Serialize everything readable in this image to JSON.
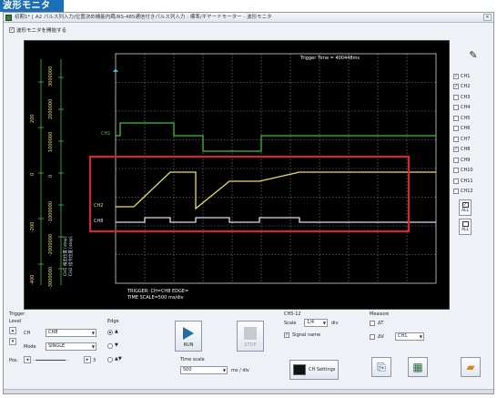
{
  "badge": "波形モニタ",
  "window": {
    "title": "初期1* [ A2 パルス列入力/位置決め機能内蔵/RS-485通信付きパルス列入力 : 標準/ギヤードモーター - 波形モニタ",
    "close_label": "×"
  },
  "monitor_toggle": {
    "label": "波形モニタを開始する",
    "checked": true
  },
  "scope": {
    "trigger_time": "Trigger Time = 400448ms",
    "trigger_info": "TRIGGER: CH=CH8 EDGE=",
    "time_scale_info": "TIME SCALE=500 ms/div",
    "ch_labels": {
      "ch1": "CH1",
      "ch2": "CH2",
      "ch8": "CH8"
    },
    "axis_ticks_a": [
      "-400",
      "-200",
      "0",
      "200"
    ],
    "axis_ticks_b": [
      "-3000000",
      "-2000000",
      "-1000000",
      "0",
      "1000000",
      "2000000",
      "3000000"
    ],
    "axis_title_a": "CH1 検出位置 [step]",
    "axis_title_b": "CH2 指令位置 [step]"
  },
  "side": {
    "channels": [
      {
        "label": "CH1",
        "checked": true
      },
      {
        "label": "CH2",
        "checked": true
      },
      {
        "label": "CH3",
        "checked": false
      },
      {
        "label": "CH4",
        "checked": false
      },
      {
        "label": "CH5",
        "checked": false
      },
      {
        "label": "CH6",
        "checked": false
      },
      {
        "label": "CH7",
        "checked": false
      },
      {
        "label": "CH8",
        "checked": true
      },
      {
        "label": "CH9",
        "checked": false
      },
      {
        "label": "CH10",
        "checked": false
      },
      {
        "label": "CH11",
        "checked": false
      },
      {
        "label": "CH12",
        "checked": false
      }
    ],
    "all_check": "ALL",
    "all_uncheck": "ALL"
  },
  "controls": {
    "trigger": "Trigger",
    "level": "Level",
    "ch_label": "CH",
    "ch_value": "CH8",
    "mode_label": "Mode",
    "mode_value": "SINGLE",
    "pos_label": "Pos.",
    "pos_value": "3",
    "edge_label": "Edge",
    "run": "RUN",
    "stop": "STOP",
    "time_scale_label": "Time scale",
    "time_scale_value": "500",
    "time_scale_unit": "ms / div",
    "ch512_label": "CH5-12",
    "scale_label": "Scale",
    "scale_value": "1/4",
    "scale_unit": "div",
    "signal_name": "Signal name",
    "ch_settings": "CH Settings",
    "measure": "Measure",
    "dt": "ΔT",
    "dv": "ΔV",
    "measure_ch": "CH1"
  },
  "colors": {
    "ch1": "#3fbf3f",
    "ch2": "#e8e060",
    "ch8": "#cfe3f0",
    "highlight": "#e0202a",
    "grid": "#9a9a9a"
  }
}
